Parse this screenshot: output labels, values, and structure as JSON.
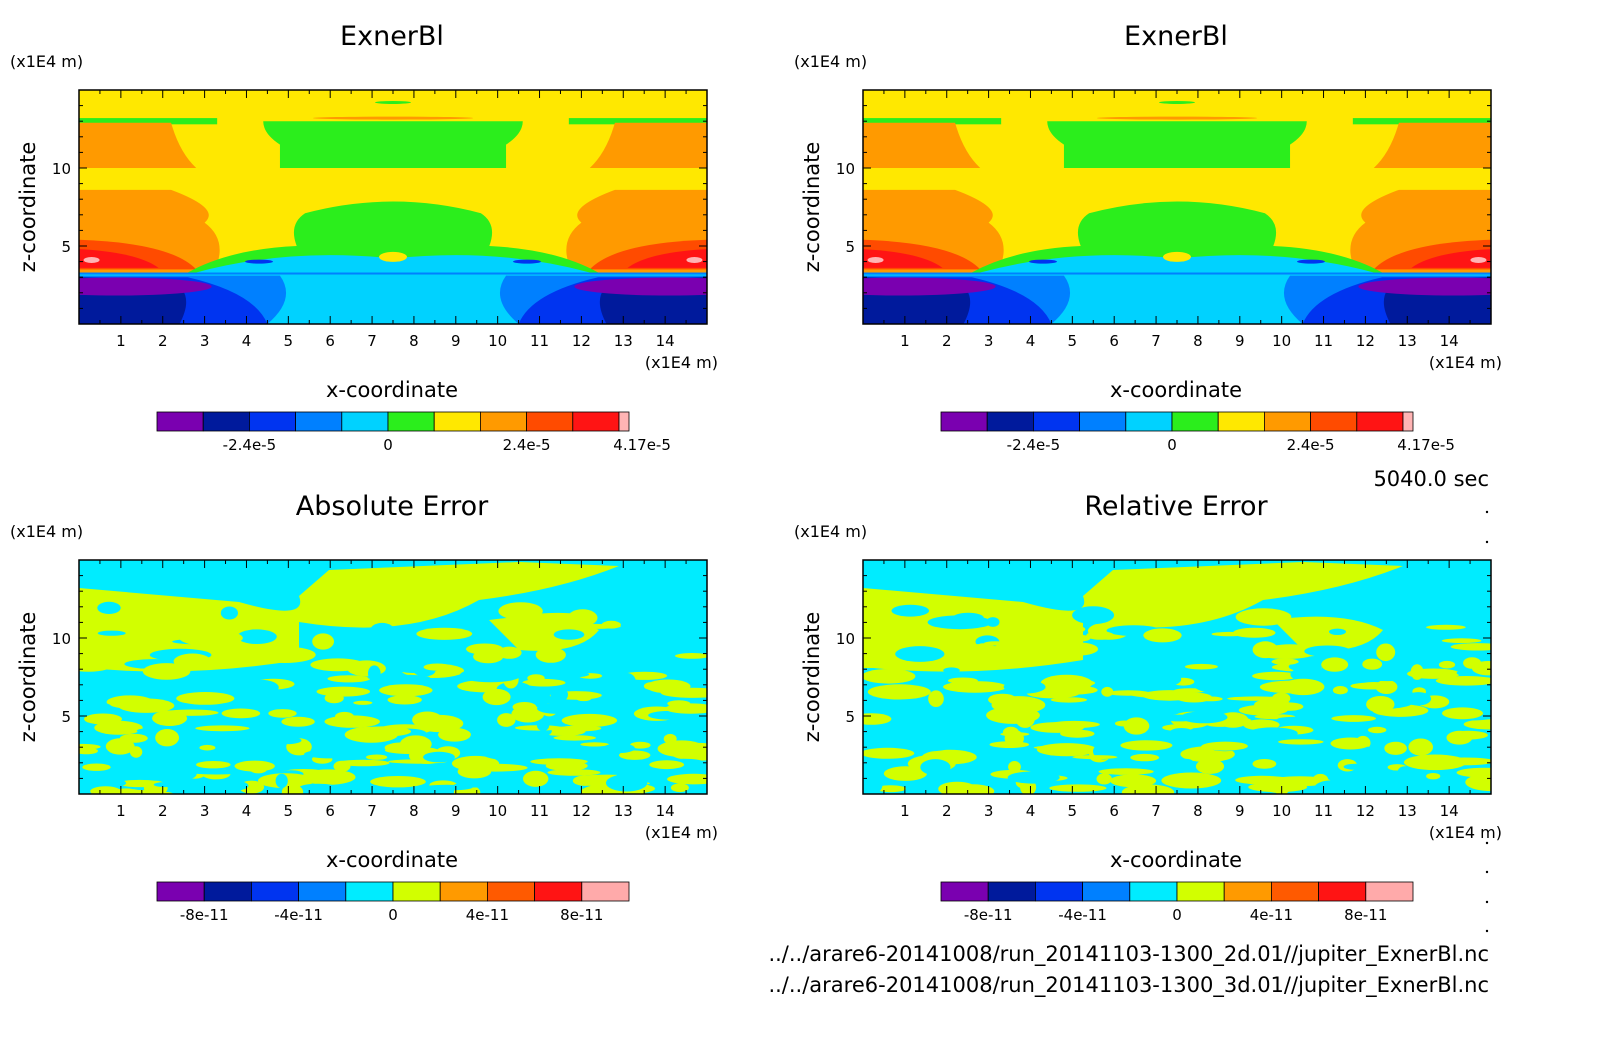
{
  "time_label": "5040.0 sec",
  "footer": {
    "file_1": "../../arare6-20141008/run_20141103-1300_2d.01//jupiter_ExnerBl.nc",
    "file_2": "../../arare6-20141008/run_20141103-1300_3d.01//jupiter_ExnerBl.nc"
  },
  "chart_data": [
    {
      "type": "heatmap",
      "title": "ExnerBl",
      "xlabel": "x-coordinate",
      "ylabel": "z-coordinate",
      "x_unit": "(x1E4 m)",
      "y_unit": "(x1E4 m)",
      "xlim": [
        0,
        15
      ],
      "ylim": [
        0,
        15
      ],
      "xticks": [
        "1",
        "2",
        "3",
        "4",
        "5",
        "6",
        "7",
        "8",
        "9",
        "10",
        "11",
        "12",
        "13",
        "14"
      ],
      "yticks": [
        "5",
        "10"
      ],
      "colorbar": {
        "tick_labels": [
          "-2.4e-5",
          "0",
          "2.4e-5",
          "4.17e-5"
        ],
        "colors": [
          "#7a00b0",
          "#001a9c",
          "#0034f0",
          "#0080ff",
          "#00d2ff",
          "#2bee1c",
          "#ffe800",
          "#ff9a00",
          "#ff4b00",
          "#ff1414",
          "#ffb4b4"
        ]
      },
      "field": "exner"
    },
    {
      "type": "heatmap",
      "title": "ExnerBl",
      "xlabel": "x-coordinate",
      "ylabel": "z-coordinate",
      "x_unit": "(x1E4 m)",
      "y_unit": "(x1E4 m)",
      "xlim": [
        0,
        15
      ],
      "ylim": [
        0,
        15
      ],
      "xticks": [
        "1",
        "2",
        "3",
        "4",
        "5",
        "6",
        "7",
        "8",
        "9",
        "10",
        "11",
        "12",
        "13",
        "14"
      ],
      "yticks": [
        "5",
        "10"
      ],
      "colorbar": {
        "tick_labels": [
          "-2.4e-5",
          "0",
          "2.4e-5",
          "4.17e-5"
        ],
        "colors": [
          "#7a00b0",
          "#001a9c",
          "#0034f0",
          "#0080ff",
          "#00d2ff",
          "#2bee1c",
          "#ffe800",
          "#ff9a00",
          "#ff4b00",
          "#ff1414",
          "#ffb4b4"
        ]
      },
      "field": "exner"
    },
    {
      "type": "heatmap",
      "title": "Absolute Error",
      "xlabel": "x-coordinate",
      "ylabel": "z-coordinate",
      "x_unit": "(x1E4 m)",
      "y_unit": "(x1E4 m)",
      "xlim": [
        0,
        15
      ],
      "ylim": [
        0,
        15
      ],
      "xticks": [
        "1",
        "2",
        "3",
        "4",
        "5",
        "6",
        "7",
        "8",
        "9",
        "10",
        "11",
        "12",
        "13",
        "14"
      ],
      "yticks": [
        "5",
        "10"
      ],
      "colorbar": {
        "tick_labels": [
          "-8e-11",
          "-4e-11",
          "0",
          "4e-11",
          "8e-11"
        ],
        "colors": [
          "#7a00b0",
          "#001a9c",
          "#0034f0",
          "#0080ff",
          "#00ecff",
          "#d2ff00",
          "#ff9a00",
          "#ff5a00",
          "#ff1414",
          "#ffaaaa"
        ]
      },
      "field": "error"
    },
    {
      "type": "heatmap",
      "title": "Relative Error",
      "xlabel": "x-coordinate",
      "ylabel": "z-coordinate",
      "x_unit": "(x1E4 m)",
      "y_unit": "(x1E4 m)",
      "xlim": [
        0,
        15
      ],
      "ylim": [
        0,
        15
      ],
      "xticks": [
        "1",
        "2",
        "3",
        "4",
        "5",
        "6",
        "7",
        "8",
        "9",
        "10",
        "11",
        "12",
        "13",
        "14"
      ],
      "yticks": [
        "5",
        "10"
      ],
      "colorbar": {
        "tick_labels": [
          "-8e-11",
          "-4e-11",
          "0",
          "4e-11",
          "8e-11"
        ],
        "colors": [
          "#7a00b0",
          "#001a9c",
          "#0034f0",
          "#0080ff",
          "#00ecff",
          "#d2ff00",
          "#ff9a00",
          "#ff5a00",
          "#ff1414",
          "#ffaaaa"
        ]
      },
      "field": "error"
    }
  ]
}
